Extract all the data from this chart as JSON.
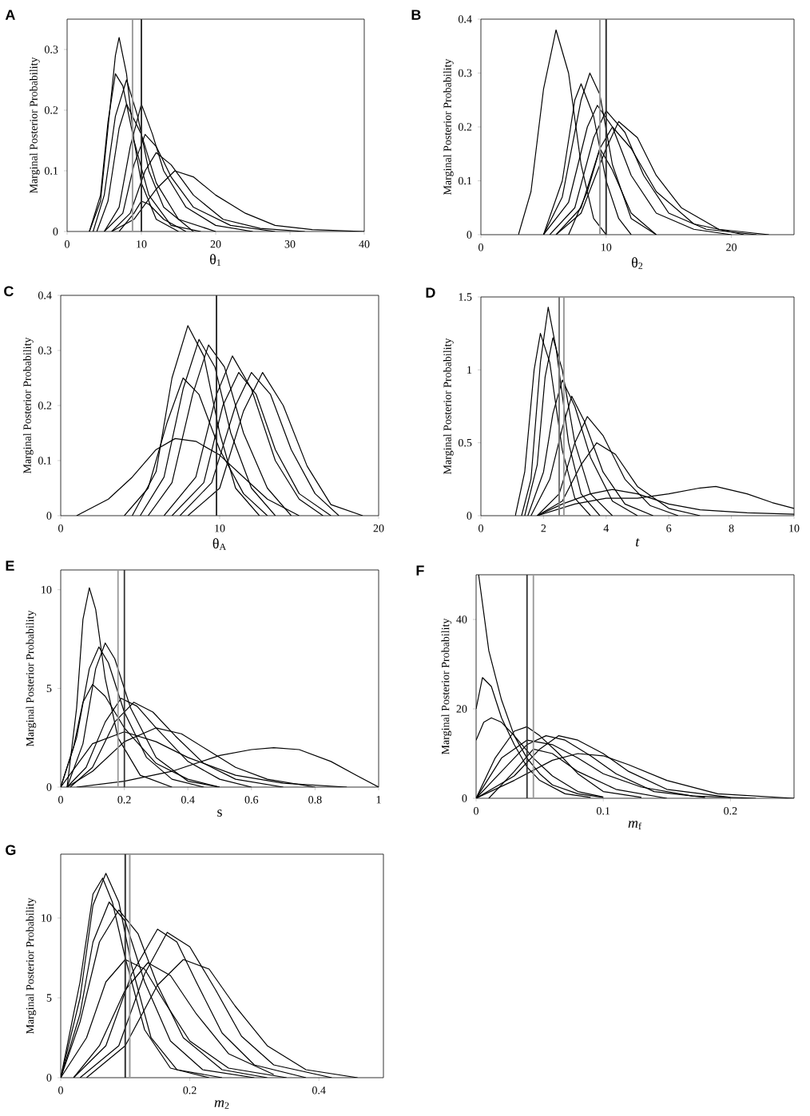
{
  "chart_data": [
    {
      "type": "line",
      "title": "A",
      "xlabel": "θ$_{1}$",
      "ylabel": "Marginal Posterior Probability",
      "xlim": [
        0,
        40
      ],
      "ylim": [
        0,
        0.35
      ],
      "xticks": [
        0,
        10,
        20,
        30,
        40
      ],
      "yticks": [
        0,
        0.1,
        0.2,
        0.3
      ],
      "ref_lines": [
        {
          "axis": "x",
          "value": 8.8,
          "color": "#999999"
        },
        {
          "axis": "x",
          "value": 10,
          "color": "#333333"
        }
      ],
      "series": [
        {
          "color": "#000000",
          "x": [
            3,
            4.5,
            5.5,
            6.5,
            7,
            8,
            9,
            10,
            12,
            15
          ],
          "values": [
            0,
            0.05,
            0.17,
            0.29,
            0.32,
            0.26,
            0.15,
            0.08,
            0.02,
            0
          ]
        },
        {
          "color": "#000000",
          "x": [
            3,
            4.5,
            5.5,
            6.5,
            7.5,
            9,
            11,
            14,
            18
          ],
          "values": [
            0,
            0.06,
            0.18,
            0.26,
            0.24,
            0.15,
            0.06,
            0.01,
            0
          ]
        },
        {
          "color": "#000000",
          "x": [
            3.5,
            5,
            6.5,
            8,
            9.5,
            11,
            13,
            17
          ],
          "values": [
            0,
            0.06,
            0.19,
            0.25,
            0.19,
            0.1,
            0.04,
            0
          ]
        },
        {
          "color": "#000000",
          "x": [
            4,
            5.5,
            7,
            8,
            10,
            12,
            15,
            20
          ],
          "values": [
            0,
            0.05,
            0.17,
            0.21,
            0.16,
            0.08,
            0.02,
            0
          ]
        },
        {
          "color": "#000000",
          "x": [
            5,
            7,
            8.5,
            10,
            11.5,
            13,
            16,
            20,
            25
          ],
          "values": [
            0,
            0.04,
            0.14,
            0.21,
            0.16,
            0.1,
            0.04,
            0.01,
            0
          ]
        },
        {
          "color": "#000000",
          "x": [
            5,
            7.5,
            9,
            10.5,
            12,
            14,
            17,
            22,
            28
          ],
          "values": [
            0,
            0.03,
            0.11,
            0.16,
            0.14,
            0.09,
            0.04,
            0.01,
            0
          ]
        },
        {
          "color": "#000000",
          "x": [
            6,
            8.5,
            10.5,
            12,
            14,
            17,
            21,
            26,
            32
          ],
          "values": [
            0,
            0.03,
            0.1,
            0.13,
            0.11,
            0.06,
            0.02,
            0.005,
            0
          ]
        },
        {
          "color": "#000000",
          "x": [
            6,
            9,
            12,
            14.5,
            17,
            20,
            24,
            28,
            33,
            40
          ],
          "values": [
            0,
            0.02,
            0.07,
            0.1,
            0.09,
            0.06,
            0.03,
            0.01,
            0.003,
            0
          ]
        },
        {
          "color": "#000000",
          "x": [
            7,
            9,
            10,
            11,
            13,
            16
          ],
          "values": [
            0,
            0.03,
            0.05,
            0.045,
            0.02,
            0
          ]
        }
      ]
    },
    {
      "type": "line",
      "title": "B",
      "xlabel": "θ$_{2}$",
      "ylabel": "Marginal Posterior Probability",
      "xlim": [
        0,
        25
      ],
      "ylim": [
        0,
        0.4
      ],
      "xticks": [
        0,
        10,
        20
      ],
      "yticks": [
        0,
        0.1,
        0.2,
        0.3,
        0.4
      ],
      "ref_lines": [
        {
          "axis": "x",
          "value": 9.5,
          "color": "#999999"
        },
        {
          "axis": "x",
          "value": 10,
          "color": "#333333"
        }
      ],
      "series": [
        {
          "color": "#000000",
          "x": [
            3,
            4,
            5,
            6,
            7,
            8,
            9,
            10
          ],
          "values": [
            0,
            0.08,
            0.27,
            0.38,
            0.3,
            0.13,
            0.03,
            0
          ]
        },
        {
          "color": "#000000",
          "x": [
            5,
            6.5,
            7.5,
            8,
            9,
            10,
            11,
            12
          ],
          "values": [
            0,
            0.1,
            0.25,
            0.28,
            0.22,
            0.1,
            0.03,
            0
          ]
        },
        {
          "color": "#000000",
          "x": [
            5,
            6.5,
            8,
            8.7,
            9.5,
            10.5,
            12,
            14
          ],
          "values": [
            0,
            0.07,
            0.25,
            0.3,
            0.26,
            0.13,
            0.03,
            0
          ]
        },
        {
          "color": "#000000",
          "x": [
            5,
            7,
            8.5,
            9.3,
            10.5,
            12,
            14,
            17,
            20
          ],
          "values": [
            0,
            0.06,
            0.2,
            0.24,
            0.2,
            0.11,
            0.04,
            0.01,
            0
          ]
        },
        {
          "color": "#000000",
          "x": [
            5.5,
            7.5,
            9,
            10,
            11.5,
            13,
            15,
            18,
            22
          ],
          "values": [
            0,
            0.05,
            0.18,
            0.23,
            0.19,
            0.11,
            0.04,
            0.01,
            0
          ]
        },
        {
          "color": "#000000",
          "x": [
            6,
            8,
            10,
            11,
            12.5,
            14,
            16,
            19,
            23
          ],
          "values": [
            0,
            0.04,
            0.16,
            0.21,
            0.18,
            0.11,
            0.05,
            0.01,
            0
          ]
        },
        {
          "color": "#000000",
          "x": [
            6,
            8,
            9.5,
            10.5,
            12,
            14,
            17,
            21
          ],
          "values": [
            0,
            0.05,
            0.16,
            0.2,
            0.16,
            0.08,
            0.02,
            0
          ]
        },
        {
          "color": "#000000",
          "x": [
            7,
            8.5,
            9.5,
            10.5,
            12,
            14
          ],
          "values": [
            0,
            0.08,
            0.16,
            0.12,
            0.04,
            0
          ]
        }
      ]
    },
    {
      "type": "line",
      "title": "C",
      "xlabel": "θ$_{A}$",
      "ylabel": "Marginal Posterior Probability",
      "xlim": [
        0,
        20
      ],
      "ylim": [
        0,
        0.4
      ],
      "xticks": [
        0,
        10,
        20
      ],
      "yticks": [
        0,
        0.1,
        0.2,
        0.3,
        0.4
      ],
      "ref_lines": [
        {
          "axis": "x",
          "value": 9.8,
          "color": "#333333"
        }
      ],
      "series": [
        {
          "color": "#000000",
          "x": [
            1,
            3,
            4.5,
            6,
            7.2,
            8.5,
            10,
            11.5,
            13,
            15
          ],
          "values": [
            0,
            0.03,
            0.07,
            0.12,
            0.14,
            0.135,
            0.11,
            0.07,
            0.03,
            0
          ]
        },
        {
          "color": "#000000",
          "x": [
            4.5,
            6,
            7,
            8,
            9,
            10,
            11,
            12.5
          ],
          "values": [
            0,
            0.08,
            0.25,
            0.345,
            0.29,
            0.15,
            0.05,
            0
          ]
        },
        {
          "color": "#000000",
          "x": [
            5,
            6.5,
            7.7,
            8.7,
            9.7,
            10.7,
            12,
            13.5
          ],
          "values": [
            0,
            0.07,
            0.23,
            0.32,
            0.27,
            0.15,
            0.05,
            0
          ]
        },
        {
          "color": "#000000",
          "x": [
            4,
            5.5,
            6.7,
            7.7,
            8.7,
            10,
            11.5,
            13
          ],
          "values": [
            0,
            0.05,
            0.17,
            0.25,
            0.22,
            0.12,
            0.04,
            0
          ]
        },
        {
          "color": "#000000",
          "x": [
            5.5,
            7,
            8.3,
            9.3,
            10.3,
            11.5,
            13,
            14.5
          ],
          "values": [
            0,
            0.06,
            0.22,
            0.31,
            0.27,
            0.15,
            0.05,
            0
          ]
        },
        {
          "color": "#000000",
          "x": [
            6.5,
            8.5,
            9.8,
            10.8,
            12,
            13.5,
            15,
            16.5
          ],
          "values": [
            0,
            0.07,
            0.22,
            0.29,
            0.23,
            0.1,
            0.03,
            0
          ]
        },
        {
          "color": "#000000",
          "x": [
            7.5,
            9.5,
            11,
            12,
            13.2,
            14.5,
            16,
            17.5
          ],
          "values": [
            0,
            0.06,
            0.2,
            0.26,
            0.22,
            0.12,
            0.04,
            0
          ]
        },
        {
          "color": "#000000",
          "x": [
            8,
            10,
            11.5,
            12.7,
            14,
            15.5,
            17,
            19
          ],
          "values": [
            0,
            0.05,
            0.19,
            0.26,
            0.2,
            0.09,
            0.02,
            0
          ]
        },
        {
          "color": "#000000",
          "x": [
            7,
            9,
            10.2,
            11.2,
            12.3,
            13.5,
            15,
            17
          ],
          "values": [
            0,
            0.06,
            0.2,
            0.26,
            0.22,
            0.12,
            0.04,
            0
          ]
        }
      ]
    },
    {
      "type": "line",
      "title": "D",
      "xlabel": "*t*",
      "ylabel": "Marginal Posterior Probability",
      "xlim": [
        0,
        10
      ],
      "ylim": [
        0,
        1.5
      ],
      "xticks": [
        0,
        2,
        4,
        6,
        8,
        10
      ],
      "yticks": [
        0,
        0.5,
        1,
        1.5
      ],
      "ref_lines": [
        {
          "axis": "x",
          "value": 2.5,
          "color": "#777777"
        },
        {
          "axis": "x",
          "value": 2.65,
          "color": "#999999"
        }
      ],
      "series": [
        {
          "color": "#000000",
          "x": [
            1.1,
            1.4,
            1.7,
            1.9,
            2.2,
            2.6,
            3,
            3.5
          ],
          "values": [
            0,
            0.3,
            1.0,
            1.25,
            1.05,
            0.45,
            0.12,
            0
          ]
        },
        {
          "color": "#000000",
          "x": [
            1.3,
            1.6,
            1.9,
            2.15,
            2.4,
            2.8,
            3.2,
            3.8
          ],
          "values": [
            0,
            0.25,
            1.05,
            1.43,
            1.15,
            0.5,
            0.15,
            0
          ]
        },
        {
          "color": "#000000",
          "x": [
            1.4,
            1.8,
            2.05,
            2.3,
            2.6,
            3,
            3.5,
            4.2
          ],
          "values": [
            0,
            0.35,
            0.95,
            1.22,
            1.0,
            0.5,
            0.15,
            0
          ]
        },
        {
          "color": "#000000",
          "x": [
            1.5,
            2,
            2.3,
            2.6,
            3,
            3.5,
            4.2,
            5
          ],
          "values": [
            0,
            0.3,
            0.7,
            0.93,
            0.75,
            0.4,
            0.1,
            0
          ]
        },
        {
          "color": "#000000",
          "x": [
            1.6,
            2.2,
            2.6,
            2.9,
            3.3,
            3.9,
            4.6,
            5.5
          ],
          "values": [
            0,
            0.25,
            0.6,
            0.82,
            0.65,
            0.3,
            0.08,
            0
          ]
        },
        {
          "color": "#000000",
          "x": [
            1.8,
            2.5,
            3,
            3.4,
            3.9,
            4.6,
            5.4,
            6.3
          ],
          "values": [
            0,
            0.15,
            0.5,
            0.68,
            0.55,
            0.25,
            0.07,
            0
          ]
        },
        {
          "color": "#000000",
          "x": [
            1.8,
            2.6,
            3.2,
            3.7,
            4.3,
            5,
            6,
            7
          ],
          "values": [
            0,
            0.1,
            0.35,
            0.5,
            0.42,
            0.2,
            0.05,
            0
          ]
        },
        {
          "color": "#000000",
          "x": [
            1.8,
            3,
            4,
            5,
            6,
            7,
            7.5,
            8.5,
            9.3,
            10
          ],
          "values": [
            0,
            0.08,
            0.12,
            0.12,
            0.15,
            0.19,
            0.2,
            0.15,
            0.09,
            0.05
          ]
        },
        {
          "color": "#000000",
          "x": [
            1.8,
            2.6,
            3.5,
            4.2,
            5,
            6,
            7,
            8.5,
            10
          ],
          "values": [
            0,
            0.08,
            0.15,
            0.18,
            0.15,
            0.08,
            0.04,
            0.02,
            0.01
          ]
        }
      ]
    },
    {
      "type": "line",
      "title": "E",
      "xlabel": "s",
      "ylabel": "Marginal Posterior Probability",
      "xlim": [
        0,
        1
      ],
      "ylim": [
        0,
        11
      ],
      "xticks": [
        0,
        0.2,
        0.4,
        0.6,
        0.8,
        1
      ],
      "yticks": [
        0,
        5,
        10
      ],
      "ref_lines": [
        {
          "axis": "x",
          "value": 0.18,
          "color": "#999999"
        },
        {
          "axis": "x",
          "value": 0.2,
          "color": "#333333"
        }
      ],
      "series": [
        {
          "color": "#000000",
          "x": [
            0.02,
            0.05,
            0.07,
            0.09,
            0.11,
            0.14,
            0.18,
            0.25,
            0.35
          ],
          "values": [
            0,
            4,
            8.5,
            10.1,
            9,
            5.5,
            2.5,
            0.6,
            0
          ]
        },
        {
          "color": "#000000",
          "x": [
            0,
            0.05,
            0.09,
            0.12,
            0.15,
            0.2,
            0.27,
            0.35,
            0.45
          ],
          "values": [
            0,
            2.5,
            6,
            7.1,
            6.3,
            3.8,
            1.5,
            0.4,
            0
          ]
        },
        {
          "color": "#000000",
          "x": [
            0.02,
            0.07,
            0.11,
            0.14,
            0.17,
            0.22,
            0.3,
            0.4,
            0.5
          ],
          "values": [
            0,
            2.2,
            6,
            7.3,
            6.5,
            4,
            1.5,
            0.3,
            0
          ]
        },
        {
          "color": "#000000",
          "x": [
            0,
            0.04,
            0.07,
            0.1,
            0.14,
            0.2,
            0.3,
            0.4,
            0.5
          ],
          "values": [
            0,
            2,
            4.3,
            5.2,
            4.6,
            3,
            1.2,
            0.4,
            0
          ]
        },
        {
          "color": "#000000",
          "x": [
            0.02,
            0.08,
            0.14,
            0.19,
            0.24,
            0.3,
            0.4,
            0.5,
            0.6
          ],
          "values": [
            0,
            1,
            3.3,
            4.5,
            4.1,
            3,
            1.3,
            0.4,
            0
          ]
        },
        {
          "color": "#000000",
          "x": [
            0.03,
            0.1,
            0.17,
            0.23,
            0.29,
            0.36,
            0.45,
            0.55,
            0.7
          ],
          "values": [
            0,
            1,
            3.3,
            4.3,
            3.8,
            2.6,
            1.2,
            0.4,
            0
          ]
        },
        {
          "color": "#000000",
          "x": [
            0.02,
            0.1,
            0.2,
            0.3,
            0.38,
            0.46,
            0.55,
            0.65,
            0.8
          ],
          "values": [
            0,
            0.8,
            2.3,
            3,
            2.7,
            1.9,
            1,
            0.4,
            0
          ]
        },
        {
          "color": "#000000",
          "x": [
            0.05,
            0.2,
            0.35,
            0.5,
            0.6,
            0.67,
            0.75,
            0.85,
            0.93,
            1
          ],
          "values": [
            0,
            0.3,
            0.8,
            1.6,
            1.9,
            2,
            1.9,
            1.3,
            0.6,
            0
          ]
        },
        {
          "color": "#000000",
          "x": [
            0,
            0.1,
            0.2,
            0.3,
            0.4,
            0.55,
            0.7,
            0.9
          ],
          "values": [
            0,
            2.2,
            2.8,
            2.3,
            1.5,
            0.6,
            0.2,
            0
          ]
        }
      ]
    },
    {
      "type": "line",
      "title": "F",
      "xlabel": "*m*$_{f}$",
      "ylabel": "Marginal Posterior Probability",
      "xlim": [
        0,
        0.25
      ],
      "ylim": [
        0,
        50
      ],
      "xticks": [
        0,
        0.1,
        0.2
      ],
      "yticks": [
        0,
        20,
        40
      ],
      "ref_lines": [
        {
          "axis": "x",
          "value": 0.04,
          "color": "#333333"
        },
        {
          "axis": "x",
          "value": 0.045,
          "color": "#999999"
        }
      ],
      "series": [
        {
          "color": "#000000",
          "x": [
            0.002,
            0.01,
            0.02,
            0.03,
            0.04,
            0.05,
            0.06,
            0.08,
            0.1
          ],
          "values": [
            50,
            33,
            22,
            14,
            9,
            5.5,
            3,
            1,
            0.2
          ]
        },
        {
          "color": "#000000",
          "x": [
            0,
            0.005,
            0.012,
            0.02,
            0.03,
            0.04,
            0.05,
            0.07,
            0.09
          ],
          "values": [
            20,
            27,
            25,
            18,
            12,
            7,
            4,
            1,
            0.2
          ]
        },
        {
          "color": "#000000",
          "x": [
            0,
            0.006,
            0.012,
            0.02,
            0.03,
            0.045,
            0.06,
            0.08,
            0.1
          ],
          "values": [
            13,
            17,
            18,
            17,
            14,
            9,
            5,
            1.5,
            0.3
          ]
        },
        {
          "color": "#000000",
          "x": [
            0,
            0.015,
            0.03,
            0.04,
            0.05,
            0.065,
            0.08,
            0.1,
            0.13
          ],
          "values": [
            0,
            9,
            15,
            16,
            14,
            10,
            5.5,
            1.5,
            0.2
          ]
        },
        {
          "color": "#000000",
          "x": [
            0,
            0.02,
            0.04,
            0.055,
            0.07,
            0.09,
            0.11,
            0.14,
            0.18
          ],
          "values": [
            0,
            6,
            12,
            14,
            13,
            9.5,
            5.5,
            1.5,
            0.2
          ]
        },
        {
          "color": "#000000",
          "x": [
            0,
            0.03,
            0.05,
            0.065,
            0.08,
            0.1,
            0.12,
            0.15,
            0.2
          ],
          "values": [
            0,
            5,
            11,
            14,
            13,
            10,
            6,
            2,
            0.2
          ]
        },
        {
          "color": "#000000",
          "x": [
            0,
            0.03,
            0.06,
            0.08,
            0.1,
            0.12,
            0.15,
            0.19,
            0.25
          ],
          "values": [
            0,
            4,
            8.5,
            10,
            9.5,
            7.5,
            4,
            1,
            0
          ]
        },
        {
          "color": "#000000",
          "x": [
            0.01,
            0.03,
            0.045,
            0.06,
            0.08,
            0.11,
            0.15
          ],
          "values": [
            0,
            6,
            11,
            10,
            6,
            2,
            0
          ]
        },
        {
          "color": "#000000",
          "x": [
            0,
            0.02,
            0.04,
            0.06,
            0.08,
            0.1,
            0.13,
            0.17,
            0.22
          ],
          "values": [
            0,
            9,
            13,
            12,
            9,
            5.5,
            2.5,
            0.5,
            0
          ]
        }
      ]
    },
    {
      "type": "line",
      "title": "G",
      "xlabel": "*m*$_{2}$",
      "ylabel": "Marginal Posterior Probability",
      "xlim": [
        0,
        0.5
      ],
      "ylim": [
        0,
        14
      ],
      "xticks": [
        0,
        0.2,
        0.4
      ],
      "yticks": [
        0,
        5,
        10
      ],
      "ref_lines": [
        {
          "axis": "x",
          "value": 0.1,
          "color": "#333333"
        },
        {
          "axis": "x",
          "value": 0.107,
          "color": "#999999"
        }
      ],
      "series": [
        {
          "color": "#000000",
          "x": [
            0,
            0.03,
            0.05,
            0.07,
            0.09,
            0.11,
            0.14,
            0.18,
            0.25
          ],
          "values": [
            0,
            5,
            10.8,
            12.8,
            11,
            7,
            2.5,
            0.5,
            0
          ]
        },
        {
          "color": "#000000",
          "x": [
            0,
            0.03,
            0.05,
            0.065,
            0.08,
            0.1,
            0.13,
            0.17,
            0.23
          ],
          "values": [
            0,
            6,
            11.5,
            12.5,
            11,
            7.5,
            3,
            0.6,
            0
          ]
        },
        {
          "color": "#000000",
          "x": [
            0,
            0.03,
            0.05,
            0.075,
            0.1,
            0.13,
            0.17,
            0.22,
            0.3
          ],
          "values": [
            0,
            4,
            8.5,
            11,
            9.8,
            6,
            2.3,
            0.5,
            0
          ]
        },
        {
          "color": "#000000",
          "x": [
            0,
            0.03,
            0.06,
            0.09,
            0.12,
            0.15,
            0.19,
            0.25,
            0.32
          ],
          "values": [
            0,
            3.5,
            8.5,
            10.5,
            9,
            5.8,
            2.5,
            0.5,
            0
          ]
        },
        {
          "color": "#000000",
          "x": [
            0,
            0.04,
            0.07,
            0.1,
            0.13,
            0.16,
            0.2,
            0.26,
            0.35
          ],
          "values": [
            0,
            2.5,
            6,
            7.4,
            6.8,
            4.8,
            2.3,
            0.6,
            0
          ]
        },
        {
          "color": "#000000",
          "x": [
            0.02,
            0.07,
            0.11,
            0.15,
            0.18,
            0.21,
            0.25,
            0.3,
            0.38
          ],
          "values": [
            0,
            2,
            6.5,
            9.3,
            8.5,
            6,
            2.8,
            0.8,
            0
          ]
        },
        {
          "color": "#000000",
          "x": [
            0.03,
            0.09,
            0.13,
            0.165,
            0.2,
            0.24,
            0.28,
            0.33,
            0.42
          ],
          "values": [
            0,
            2,
            6.5,
            9.1,
            8.2,
            5.5,
            2.6,
            0.8,
            0
          ]
        },
        {
          "color": "#000000",
          "x": [
            0.04,
            0.1,
            0.15,
            0.19,
            0.23,
            0.27,
            0.32,
            0.38,
            0.46
          ],
          "values": [
            0,
            2,
            5.8,
            7.4,
            6.8,
            4.5,
            2,
            0.5,
            0
          ]
        },
        {
          "color": "#000000",
          "x": [
            0.02,
            0.06,
            0.1,
            0.135,
            0.17,
            0.21,
            0.26,
            0.33
          ],
          "values": [
            0,
            2,
            5.5,
            7.2,
            6.4,
            4,
            1.5,
            0.2
          ]
        }
      ]
    }
  ]
}
